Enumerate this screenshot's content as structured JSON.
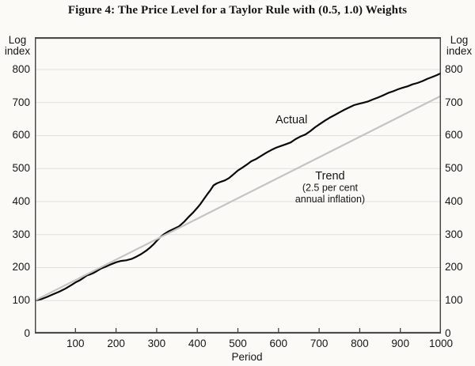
{
  "chart_data": {
    "type": "line",
    "title": "Figure 4: The Price Level for a Taylor Rule with (0.5, 1.0) Weights",
    "xlabel": "Period",
    "y_axis_label_lines": [
      "Log",
      "index"
    ],
    "xlim": [
      0,
      1000
    ],
    "ylim": [
      0,
      898
    ],
    "x_ticks": [
      100,
      200,
      300,
      400,
      500,
      600,
      700,
      800,
      900,
      1000
    ],
    "y_ticks": [
      0,
      100,
      200,
      300,
      400,
      500,
      600,
      700,
      800
    ],
    "grid": "horizontal",
    "legend_position": "inline-annotations",
    "colors": {
      "actual": "#0a0a0a",
      "trend": "#c4c4c4",
      "gridline": "#e0e0dc",
      "frame": "#3f3f3f",
      "background": "#fbfaf6"
    },
    "series": [
      {
        "name": "Actual",
        "color": "#0a0a0a",
        "width": 2.2,
        "points": [
          [
            0,
            100
          ],
          [
            15,
            104
          ],
          [
            30,
            111
          ],
          [
            45,
            119
          ],
          [
            60,
            127
          ],
          [
            75,
            136
          ],
          [
            90,
            147
          ],
          [
            100,
            155
          ],
          [
            110,
            161
          ],
          [
            120,
            169
          ],
          [
            128,
            176
          ],
          [
            135,
            179
          ],
          [
            143,
            183
          ],
          [
            152,
            189
          ],
          [
            163,
            197
          ],
          [
            175,
            203
          ],
          [
            188,
            210
          ],
          [
            200,
            216
          ],
          [
            212,
            220
          ],
          [
            225,
            222
          ],
          [
            238,
            226
          ],
          [
            250,
            233
          ],
          [
            262,
            241
          ],
          [
            275,
            252
          ],
          [
            285,
            262
          ],
          [
            292,
            270
          ],
          [
            300,
            281
          ],
          [
            308,
            291
          ],
          [
            318,
            301
          ],
          [
            330,
            310
          ],
          [
            342,
            317
          ],
          [
            355,
            325
          ],
          [
            368,
            339
          ],
          [
            380,
            355
          ],
          [
            390,
            367
          ],
          [
            400,
            381
          ],
          [
            408,
            393
          ],
          [
            416,
            407
          ],
          [
            424,
            421
          ],
          [
            432,
            434
          ],
          [
            440,
            449
          ],
          [
            448,
            455
          ],
          [
            458,
            460
          ],
          [
            468,
            464
          ],
          [
            478,
            471
          ],
          [
            488,
            481
          ],
          [
            500,
            494
          ],
          [
            510,
            502
          ],
          [
            522,
            512
          ],
          [
            533,
            522
          ],
          [
            545,
            529
          ],
          [
            557,
            538
          ],
          [
            570,
            548
          ],
          [
            582,
            556
          ],
          [
            594,
            563
          ],
          [
            605,
            568
          ],
          [
            617,
            573
          ],
          [
            630,
            579
          ],
          [
            642,
            589
          ],
          [
            654,
            597
          ],
          [
            666,
            603
          ],
          [
            678,
            613
          ],
          [
            690,
            625
          ],
          [
            702,
            635
          ],
          [
            714,
            645
          ],
          [
            726,
            654
          ],
          [
            738,
            662
          ],
          [
            750,
            670
          ],
          [
            762,
            678
          ],
          [
            774,
            685
          ],
          [
            786,
            692
          ],
          [
            797,
            696
          ],
          [
            808,
            699
          ],
          [
            820,
            703
          ],
          [
            832,
            709
          ],
          [
            845,
            715
          ],
          [
            858,
            722
          ],
          [
            870,
            729
          ],
          [
            882,
            734
          ],
          [
            894,
            740
          ],
          [
            906,
            745
          ],
          [
            918,
            749
          ],
          [
            930,
            755
          ],
          [
            942,
            759
          ],
          [
            955,
            765
          ],
          [
            967,
            772
          ],
          [
            980,
            778
          ],
          [
            990,
            783
          ],
          [
            1000,
            789
          ]
        ]
      },
      {
        "name": "Trend",
        "color": "#c4c4c4",
        "width": 2.2,
        "points": [
          [
            0,
            100
          ],
          [
            1000,
            720
          ]
        ]
      }
    ],
    "annotations": [
      {
        "name": "actual-label",
        "x": 632,
        "y": 648,
        "lines": [
          "Actual"
        ],
        "sizes": [
          14.5
        ]
      },
      {
        "name": "trend-label",
        "x": 727,
        "y": 443,
        "lines": [
          "Trend",
          "(2.5 per cent",
          "annual inflation)"
        ],
        "sizes": [
          14.5,
          12.5,
          12.5
        ]
      }
    ]
  }
}
